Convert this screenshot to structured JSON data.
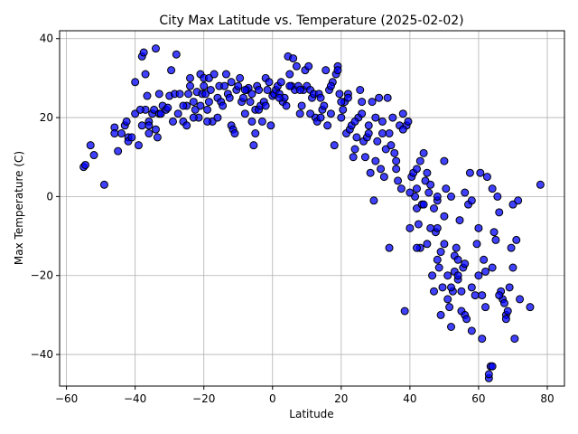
{
  "chart_data": {
    "type": "scatter",
    "title": "City Max Latitude vs. Temperature (2025-02-02)",
    "xlabel": "Latitude",
    "ylabel": "Max Temperature (C)",
    "xlim": [
      -62,
      85
    ],
    "ylim": [
      -48,
      42
    ],
    "xticks": [
      -60,
      -40,
      -20,
      0,
      20,
      40,
      60,
      80
    ],
    "yticks": [
      -40,
      -20,
      0,
      20,
      40
    ],
    "grid": true,
    "marker_color": "#0000ff",
    "marker_edge": "#000000",
    "points": [
      [
        -55,
        7.5
      ],
      [
        -54.5,
        8
      ],
      [
        -53,
        13
      ],
      [
        -52,
        10.5
      ],
      [
        -49,
        3
      ],
      [
        -46,
        17.5
      ],
      [
        -46,
        16
      ],
      [
        -45,
        11.5
      ],
      [
        -44,
        16
      ],
      [
        -43,
        18
      ],
      [
        -42.5,
        19
      ],
      [
        -42,
        15
      ],
      [
        -42,
        14
      ],
      [
        -41,
        15
      ],
      [
        -40,
        21
      ],
      [
        -40,
        29
      ],
      [
        -38,
        35.5
      ],
      [
        -37.5,
        36.5
      ],
      [
        -37,
        31
      ],
      [
        -37,
        22
      ],
      [
        -36.5,
        25.5
      ],
      [
        -36,
        19
      ],
      [
        -36,
        18
      ],
      [
        -35,
        21
      ],
      [
        -34.5,
        22
      ],
      [
        -34,
        37.5
      ],
      [
        -34,
        17
      ],
      [
        -33.5,
        15
      ],
      [
        -33,
        26
      ],
      [
        -33,
        21
      ],
      [
        -32.5,
        21
      ],
      [
        -32,
        23
      ],
      [
        -31,
        22
      ],
      [
        -30,
        25.5
      ],
      [
        -29.5,
        32
      ],
      [
        -29,
        19
      ],
      [
        -28.5,
        26
      ],
      [
        -28,
        36
      ],
      [
        -27.5,
        21
      ],
      [
        -27,
        26
      ],
      [
        -26,
        19
      ],
      [
        -25,
        23
      ],
      [
        -25,
        18
      ],
      [
        -24.5,
        26
      ],
      [
        -24,
        28
      ],
      [
        -24,
        30
      ],
      [
        -23,
        24
      ],
      [
        -22.5,
        22
      ],
      [
        -22,
        26.5
      ],
      [
        -21.5,
        20
      ],
      [
        -21,
        31
      ],
      [
        -21,
        23
      ],
      [
        -20.5,
        26
      ],
      [
        -20,
        30
      ],
      [
        -20,
        28
      ],
      [
        -19.5,
        26
      ],
      [
        -19,
        22
      ],
      [
        -18.5,
        30
      ],
      [
        -18.5,
        24
      ],
      [
        -18,
        27
      ],
      [
        -17.5,
        19
      ],
      [
        -17,
        31
      ],
      [
        -16,
        25
      ],
      [
        -15.5,
        28
      ],
      [
        -15,
        24
      ],
      [
        -14.5,
        23
      ],
      [
        -14,
        28
      ],
      [
        -13.5,
        31
      ],
      [
        -13,
        26
      ],
      [
        -12.5,
        25
      ],
      [
        -12,
        18
      ],
      [
        -11.5,
        17
      ],
      [
        -11,
        16
      ],
      [
        -10.5,
        27
      ],
      [
        -10,
        28
      ],
      [
        -9.5,
        30
      ],
      [
        -9,
        24
      ],
      [
        -8.5,
        25
      ],
      [
        -8,
        21
      ],
      [
        -7.5,
        27
      ],
      [
        -7,
        27.5
      ],
      [
        -6.5,
        24
      ],
      [
        -6,
        26
      ],
      [
        -5.5,
        13
      ],
      [
        -5,
        16
      ],
      [
        -5,
        22
      ],
      [
        -4.5,
        28
      ],
      [
        -4,
        22
      ],
      [
        -3.5,
        23
      ],
      [
        -3,
        19
      ],
      [
        -2.5,
        24
      ],
      [
        -2,
        30
      ],
      [
        -1.5,
        27
      ],
      [
        -1,
        29
      ],
      [
        -0.5,
        18
      ],
      [
        0,
        25.5
      ],
      [
        0.5,
        26
      ],
      [
        1,
        27
      ],
      [
        1.5,
        28
      ],
      [
        2,
        26
      ],
      [
        2.5,
        29
      ],
      [
        3,
        24
      ],
      [
        3.5,
        25
      ],
      [
        4,
        23
      ],
      [
        4.5,
        35.5
      ],
      [
        5,
        31
      ],
      [
        5.5,
        28
      ],
      [
        6,
        35
      ],
      [
        6.5,
        27
      ],
      [
        7,
        33
      ],
      [
        7.5,
        28
      ],
      [
        8,
        21
      ],
      [
        8.5,
        23
      ],
      [
        9,
        27
      ],
      [
        9.5,
        32
      ],
      [
        10,
        28
      ],
      [
        10.5,
        33
      ],
      [
        11,
        27
      ],
      [
        11.5,
        25
      ],
      [
        12,
        26
      ],
      [
        12.5,
        20
      ],
      [
        13,
        19
      ],
      [
        13.5,
        26
      ],
      [
        14,
        20
      ],
      [
        14.5,
        22
      ],
      [
        15,
        23
      ],
      [
        15.5,
        32
      ],
      [
        16,
        18
      ],
      [
        16.5,
        27
      ],
      [
        17,
        21
      ],
      [
        17.5,
        29
      ],
      [
        18,
        13
      ],
      [
        18.5,
        31
      ],
      [
        19,
        33
      ],
      [
        19,
        32
      ],
      [
        19.5,
        26
      ],
      [
        20,
        20
      ],
      [
        20.5,
        22
      ],
      [
        21,
        24
      ],
      [
        21.5,
        16
      ],
      [
        22,
        26
      ],
      [
        22.5,
        17
      ],
      [
        23,
        18
      ],
      [
        23.5,
        10
      ],
      [
        24,
        12
      ],
      [
        24.5,
        15
      ],
      [
        25,
        20
      ],
      [
        25.5,
        27
      ],
      [
        26,
        24
      ],
      [
        26.5,
        14
      ],
      [
        27,
        10
      ],
      [
        27.5,
        15
      ],
      [
        28,
        16
      ],
      [
        28.5,
        6
      ],
      [
        29,
        24
      ],
      [
        29.5,
        -1
      ],
      [
        30,
        9
      ],
      [
        30.5,
        14
      ],
      [
        31,
        25
      ],
      [
        31.5,
        7
      ],
      [
        32,
        16
      ],
      [
        32.5,
        5
      ],
      [
        33,
        12
      ],
      [
        33.5,
        25
      ],
      [
        34,
        -13
      ],
      [
        34.5,
        13
      ],
      [
        35,
        20
      ],
      [
        35.5,
        11
      ],
      [
        36,
        9
      ],
      [
        36.5,
        4
      ],
      [
        37,
        18
      ],
      [
        37.5,
        2
      ],
      [
        38,
        21
      ],
      [
        38.5,
        -29
      ],
      [
        39,
        18
      ],
      [
        39.5,
        19
      ],
      [
        40,
        -8
      ],
      [
        40.5,
        5
      ],
      [
        41,
        6
      ],
      [
        41.5,
        0
      ],
      [
        42,
        -3
      ],
      [
        42,
        2
      ],
      [
        42.5,
        -7
      ],
      [
        43,
        -13
      ],
      [
        43,
        9
      ],
      [
        43.5,
        -2
      ],
      [
        44,
        11
      ],
      [
        44.5,
        4
      ],
      [
        45,
        -12
      ],
      [
        45,
        6
      ],
      [
        45.5,
        1
      ],
      [
        46,
        3
      ],
      [
        46.5,
        -20
      ],
      [
        47,
        -3
      ],
      [
        47,
        -24
      ],
      [
        47.5,
        -9
      ],
      [
        48,
        -16
      ],
      [
        48,
        -8
      ],
      [
        48.5,
        -18
      ],
      [
        49,
        -30
      ],
      [
        49,
        -14
      ],
      [
        49.5,
        -23
      ],
      [
        50,
        -5
      ],
      [
        50,
        9
      ],
      [
        50.5,
        2
      ],
      [
        51,
        -26
      ],
      [
        51,
        -20
      ],
      [
        51.5,
        -28
      ],
      [
        52,
        -33
      ],
      [
        52,
        0
      ],
      [
        52.5,
        -24
      ],
      [
        53,
        -15
      ],
      [
        53,
        -19
      ],
      [
        53.5,
        -13
      ],
      [
        54,
        -21
      ],
      [
        54,
        -16
      ],
      [
        54.5,
        -6
      ],
      [
        55,
        -29
      ],
      [
        55,
        -24
      ],
      [
        55.5,
        -18
      ],
      [
        56,
        -30
      ],
      [
        56,
        1
      ],
      [
        56.5,
        -31
      ],
      [
        57,
        -2
      ],
      [
        57.5,
        6
      ],
      [
        58,
        -34
      ],
      [
        58,
        -1
      ],
      [
        59,
        -25
      ],
      [
        59.5,
        -12
      ],
      [
        60,
        -20
      ],
      [
        60.5,
        6
      ],
      [
        61,
        -36
      ],
      [
        61,
        -25
      ],
      [
        61.5,
        -16
      ],
      [
        62,
        -19
      ],
      [
        62.5,
        5
      ],
      [
        63,
        -46
      ],
      [
        63,
        -45
      ],
      [
        63.5,
        -43
      ],
      [
        64,
        2
      ],
      [
        64,
        -18
      ],
      [
        64.5,
        -9
      ],
      [
        65,
        -11
      ],
      [
        65.5,
        0
      ],
      [
        66,
        -4
      ],
      [
        66.5,
        -24
      ],
      [
        67,
        -26
      ],
      [
        67.5,
        -27
      ],
      [
        68,
        -30
      ],
      [
        68.5,
        -29
      ],
      [
        69,
        -23
      ],
      [
        69.5,
        -13
      ],
      [
        70,
        -2
      ],
      [
        70.5,
        -36
      ],
      [
        71,
        -11
      ],
      [
        71.5,
        -1
      ],
      [
        72,
        -26
      ],
      [
        75,
        -28
      ],
      [
        78,
        3
      ],
      [
        -39,
        13
      ],
      [
        -38.5,
        22
      ],
      [
        -38,
        18
      ],
      [
        -36,
        16
      ],
      [
        -30.5,
        22.5
      ],
      [
        -26,
        23
      ],
      [
        -23,
        20
      ],
      [
        -19,
        19
      ],
      [
        -16,
        20
      ],
      [
        -12,
        29
      ],
      [
        -8,
        27
      ],
      [
        -6,
        19
      ],
      [
        -4,
        27
      ],
      [
        -2,
        23
      ],
      [
        2,
        25
      ],
      [
        5,
        28
      ],
      [
        8,
        27
      ],
      [
        11,
        21
      ],
      [
        14,
        25
      ],
      [
        17,
        28
      ],
      [
        20,
        24
      ],
      [
        22,
        25
      ],
      [
        24,
        19
      ],
      [
        26,
        21
      ],
      [
        28,
        18
      ],
      [
        30,
        20
      ],
      [
        32,
        19
      ],
      [
        34,
        16
      ],
      [
        36,
        7
      ],
      [
        38,
        17
      ],
      [
        40,
        1
      ],
      [
        42,
        -13
      ],
      [
        44,
        -2
      ],
      [
        46,
        -8
      ],
      [
        48,
        -1
      ],
      [
        50,
        -12
      ],
      [
        52,
        -23
      ],
      [
        54,
        -20
      ],
      [
        56,
        -17
      ],
      [
        58,
        -23
      ],
      [
        60,
        -8
      ],
      [
        62,
        -28
      ],
      [
        64,
        -43
      ],
      [
        66,
        -25
      ],
      [
        68,
        -31
      ],
      [
        70,
        -18
      ],
      [
        48,
        0
      ],
      [
        42,
        7
      ]
    ]
  }
}
